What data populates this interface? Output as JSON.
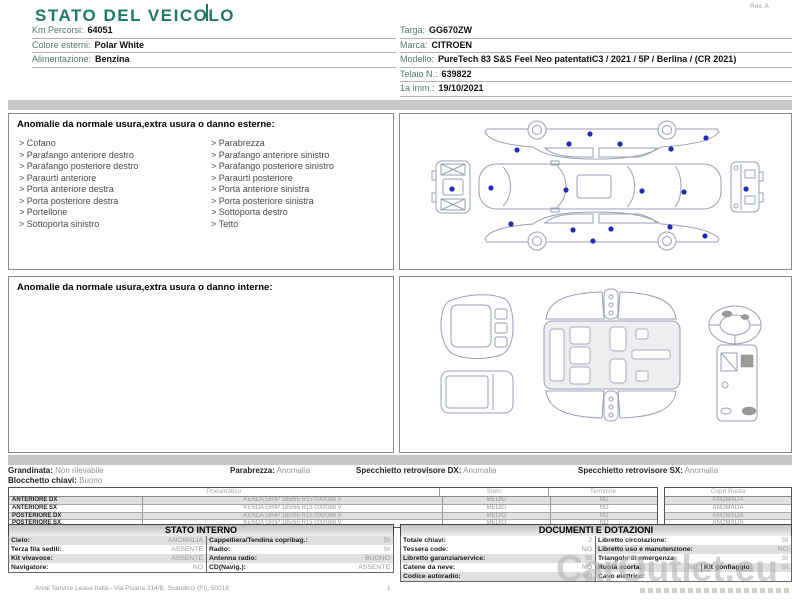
{
  "colors": {
    "accent_teal": "#1e7a68",
    "dot_blue": "#1d2eb0"
  },
  "header": {
    "title": "STATO DEL VEICOLO",
    "rev": "Rev. A",
    "left_fields": [
      {
        "label": "Km Percorsi:",
        "value": "64051"
      },
      {
        "label": "Colore esterni:",
        "value": "Polar White"
      },
      {
        "label": "Alimentazione:",
        "value": "Benzina"
      }
    ],
    "right_fields": [
      {
        "label": "Targa:",
        "value": "GG670ZW"
      },
      {
        "label": "Marca:",
        "value": "CITROEN"
      },
      {
        "label": "Modello:",
        "value": "PureTech 83 S&S Feel Neo patentatiC3 / 2021 / 5P / Berlina / (CR 2021)"
      },
      {
        "label": "Telaio N.:",
        "value": "639822"
      },
      {
        "label": "1a imm.:",
        "value": "19/10/2021"
      }
    ]
  },
  "exterior": {
    "title": "Anomalie da normale usura,extra usura o danno esterne:",
    "bullet": ">",
    "items_left": [
      "Cofano",
      "Parafango anteriore destro",
      "Parafango posteriore destro",
      "Paraurti anteriore",
      "Porta anteriore destra",
      "Porta posteriore destra",
      "Portellone",
      "Sottoporta sinistro"
    ],
    "items_right": [
      "Parabrezza",
      "Parafango anteriore sinistro",
      "Parafango posteriore sinistro",
      "Paraurti posteriore",
      "Porta anteriore sinistra",
      "Porta posteriore sinistra",
      "Sottoporta destro",
      "Tetto"
    ]
  },
  "interior": {
    "title": "Anomalie da normale usura,extra usura o danno interne:"
  },
  "summary": {
    "grandinata": {
      "label": "Grandinata:",
      "value": "Non rilevabile"
    },
    "parabrezza": {
      "label": "Parabrezza:",
      "value": "Anomalia"
    },
    "specchietto_dx": {
      "label": "Specchietto retrovisore DX:",
      "value": "Anomalia"
    },
    "specchietto_sx": {
      "label": "Specchietto retrovisore SX:",
      "value": "Anomalia"
    },
    "blocchetto": {
      "label": "Blocchetto chiavi:",
      "value": "Buono"
    }
  },
  "tyres": {
    "col_pneumatico": "Pneumatico",
    "col_stato": "Stato",
    "col_termiche": "Termiche",
    "col_copri": "Copri Ruota",
    "rows": [
      {
        "position": "ANTERIORE DX",
        "tyre": "KENDA GRIP 185/65 R15 000/088 V",
        "stato": "MEDIO",
        "termiche": "NO",
        "copri": "ANOMALIA"
      },
      {
        "position": "ANTERIORE SX",
        "tyre": "KENDA GRIP 185/65 R15 000/088 V",
        "stato": "MEDIO",
        "termiche": "NO",
        "copri": "ANOMALIA"
      },
      {
        "position": "POSTERIORE DX",
        "tyre": "KENDA GRIP 185/65 R15 000/088 V",
        "stato": "MEDIO",
        "termiche": "NO",
        "copri": "ANOMALIA"
      },
      {
        "position": "POSTERIORE SX",
        "tyre": "KENDA GRIP 185/65 R15 000/088 V",
        "stato": "MEDIO",
        "termiche": "NO",
        "copri": "ANOMALIA"
      }
    ]
  },
  "stato_interno": {
    "title": "STATO INTERNO",
    "rows": [
      {
        "l1": "Cielo:",
        "v1": "ANOMALIA",
        "l2": "Cappelliera/Tendina copribag.:",
        "v2": "SI"
      },
      {
        "l1": "Terza fila sedili:",
        "v1": "ASSENTE",
        "l2": "Radio:",
        "v2": "SI"
      },
      {
        "l1": "Kit vivavoce:",
        "v1": "ASSENTE",
        "l2": "Antenna radio:",
        "v2": "BUONO"
      },
      {
        "l1": "Navigatore:",
        "v1": "NO",
        "l2": "CD(Navig.):",
        "v2": "ASSENTE"
      }
    ]
  },
  "documenti": {
    "title": "DOCUMENTI E DOTAZIONI",
    "rows": [
      {
        "l1": "Totale chiavi:",
        "v1": "2",
        "l2": "Libretto circolazione:",
        "v2": "SI"
      },
      {
        "l1": "Tessera code:",
        "v1": "NO",
        "l2": "Libretto uso e manutenzione:",
        "v2": "NO"
      },
      {
        "l1": "Libretto garanzia/service:",
        "v1": "SI",
        "l2": "Triangolo di emergenza:",
        "v2": "SI"
      },
      {
        "l1": "Catene da neve:",
        "v1": "NO",
        "l2": "Ruota scorta:",
        "v2": "NO",
        "l3": "Kit gonfiaggio:",
        "v3": "SI"
      },
      {
        "l1": "Codice autoradio:",
        "v1": "NO",
        "l2": "Cavo elettrico:",
        "v2": ""
      }
    ]
  },
  "footer": {
    "company": "Arval Service Lease Italia - Via Pisana 314/B, Scandicci (FI), 50018",
    "page": "1",
    "watermark": "CarOutlet.eu"
  }
}
